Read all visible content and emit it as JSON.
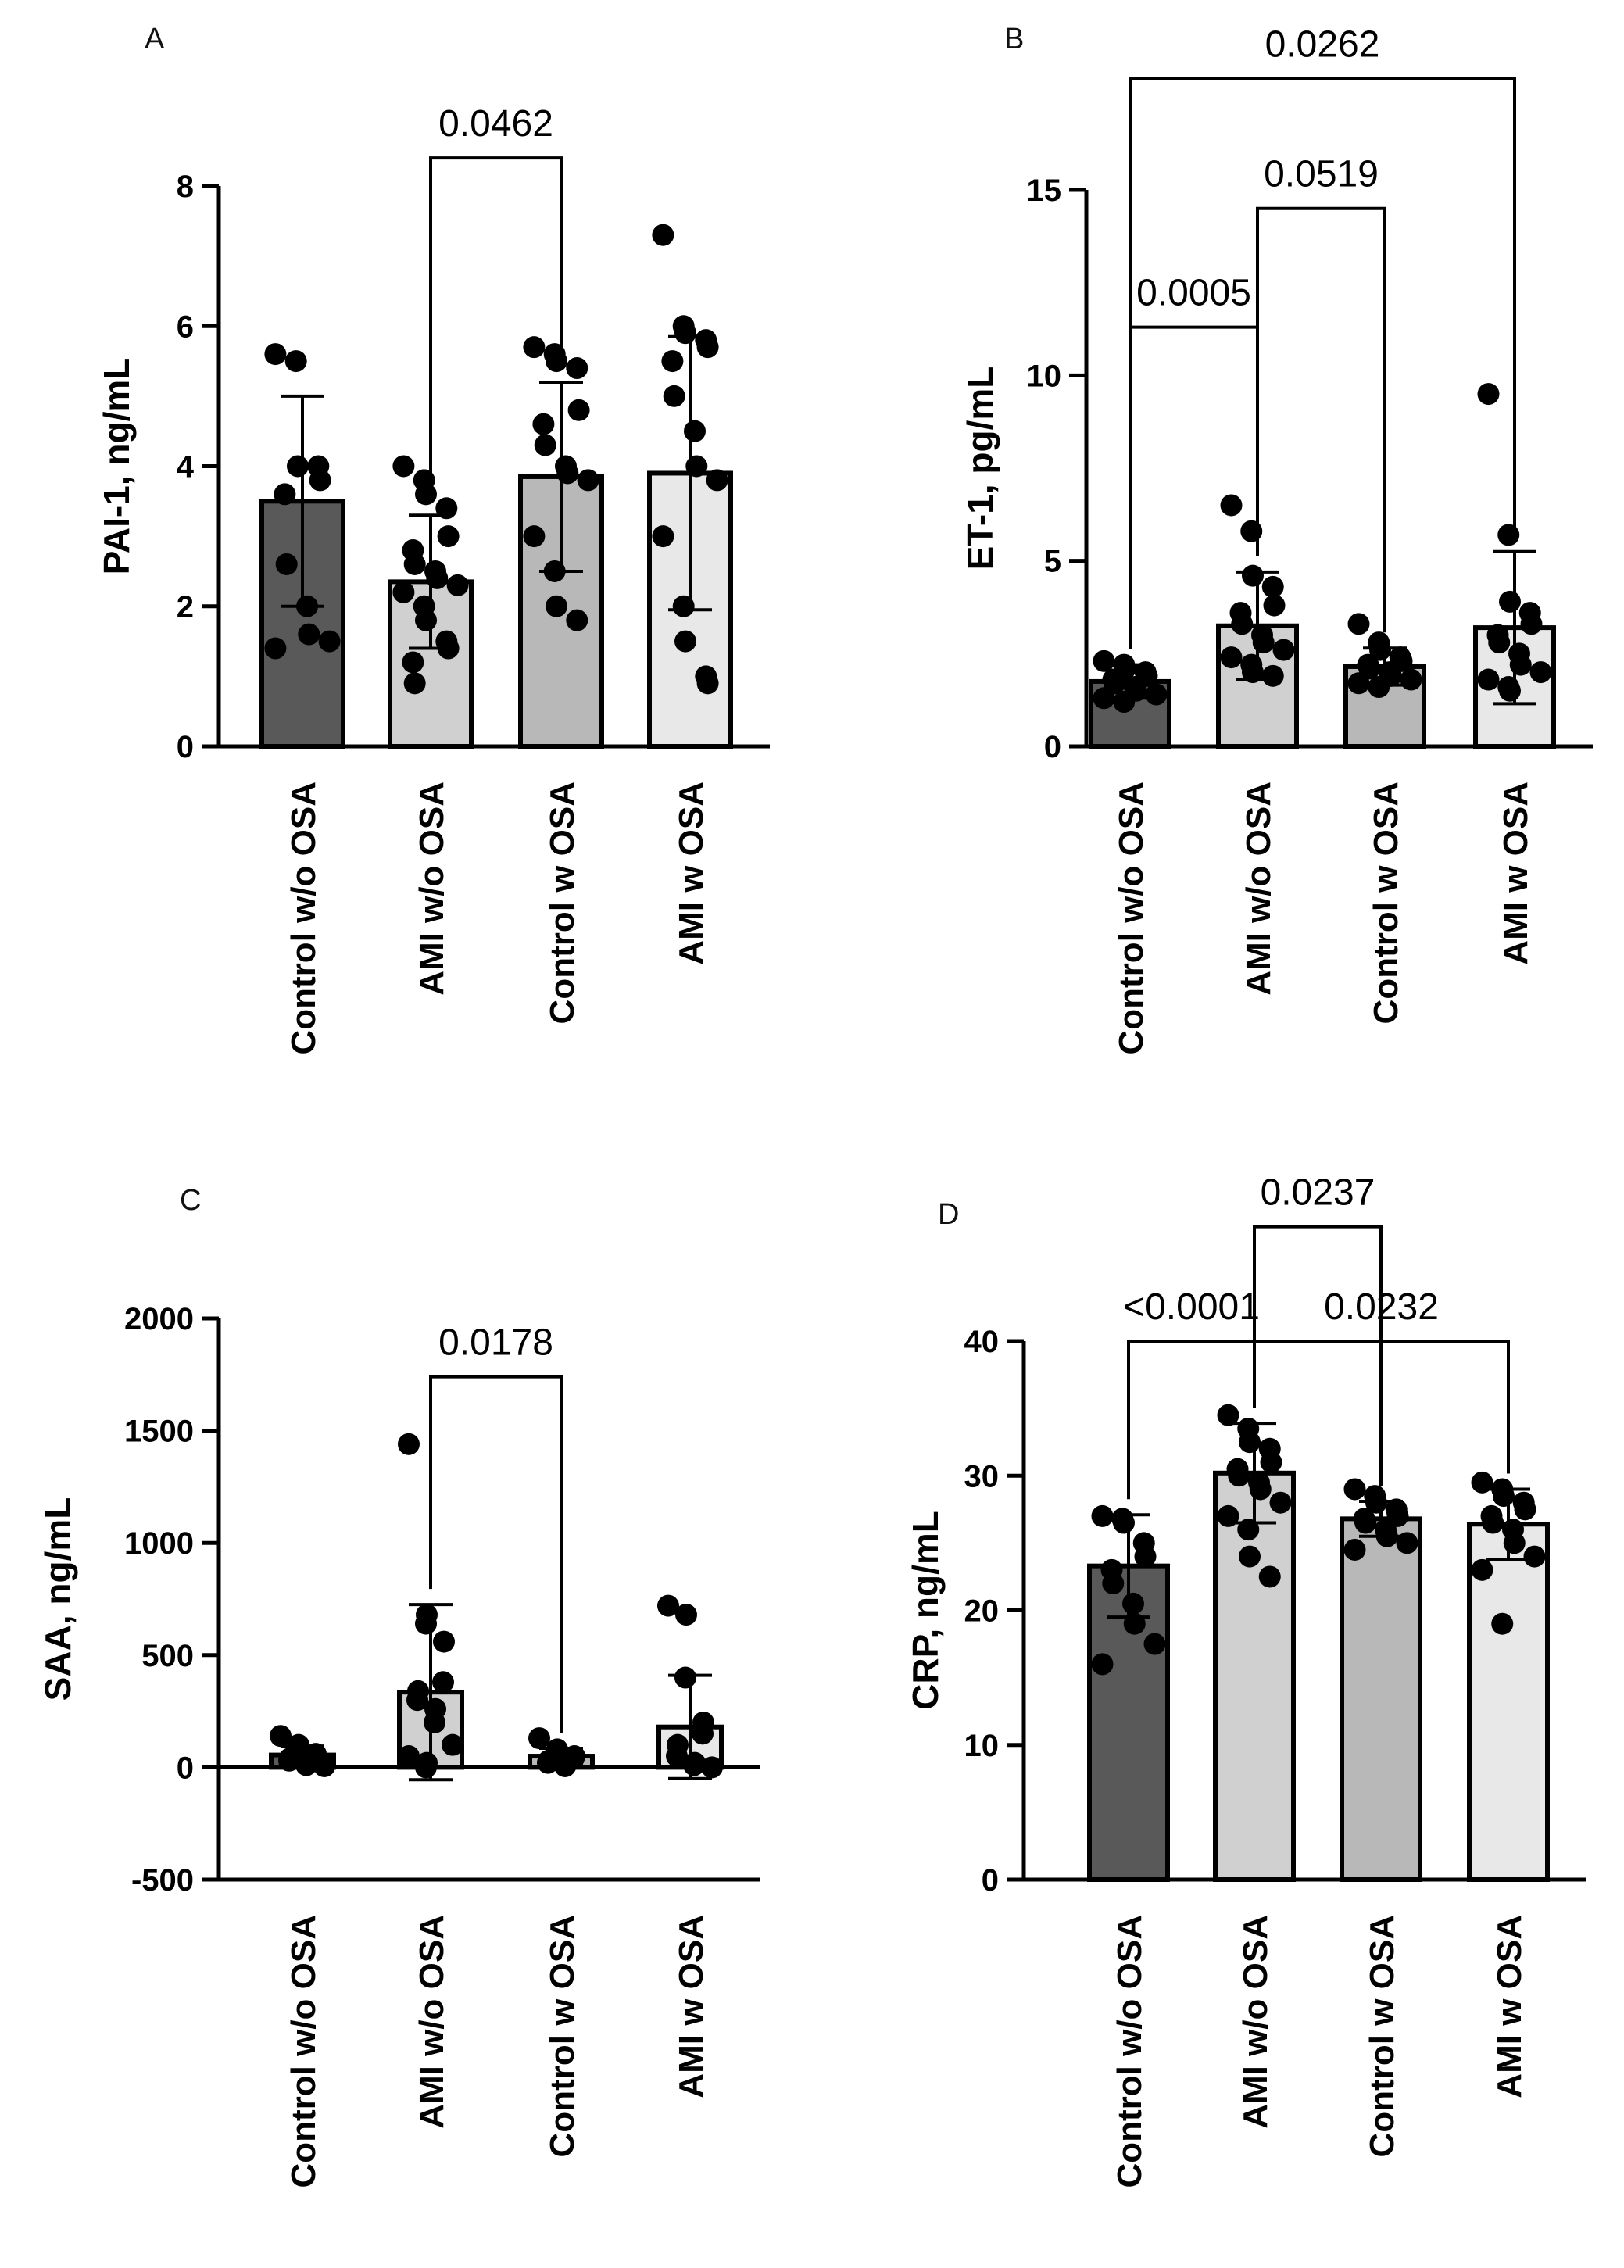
{
  "chart_data": [
    {
      "type": "bar",
      "panel": "A",
      "categories": [
        "Control w/o OSA",
        "AMI w/o OSA",
        "Control w OSA",
        "AMI w OSA"
      ],
      "values": [
        3.5,
        2.35,
        3.85,
        3.9
      ],
      "sd": [
        1.5,
        0.95,
        1.35,
        1.95
      ],
      "bar_colors": [
        "#595959",
        "#d0d0d0",
        "#b8b8b8",
        "#e8e8e8"
      ],
      "points": [
        [
          5.6,
          5.5,
          4.0,
          4.0,
          3.8,
          3.6,
          2.6,
          2.0,
          1.6,
          1.5,
          1.4
        ],
        [
          4.0,
          3.8,
          3.6,
          3.4,
          3.0,
          2.8,
          2.6,
          2.5,
          2.4,
          2.3,
          2.2,
          2.0,
          1.8,
          1.5,
          1.4,
          1.2,
          0.9
        ],
        [
          5.7,
          5.6,
          5.5,
          5.4,
          4.8,
          4.6,
          4.3,
          4.0,
          3.9,
          3.8,
          3.0,
          2.5,
          2.0,
          1.8
        ],
        [
          7.3,
          6.0,
          5.9,
          5.8,
          5.7,
          5.5,
          5.0,
          4.5,
          4.0,
          3.8,
          3.0,
          2.0,
          1.5,
          1.0,
          0.9
        ]
      ],
      "ylabel": "PAI-1, ng/mL",
      "ylim": [
        0,
        8
      ],
      "yticks": [
        0,
        2,
        4,
        6,
        8
      ],
      "comparisons": [
        {
          "from": 1,
          "to": 2,
          "label": "0.0462",
          "level": 8.4
        }
      ]
    },
    {
      "type": "bar",
      "panel": "B",
      "categories": [
        "Control w/o OSA",
        "AMI w/o OSA",
        "Control w OSA",
        "AMI w OSA"
      ],
      "values": [
        1.75,
        3.25,
        2.15,
        3.2
      ],
      "sd": [
        0.45,
        1.45,
        0.5,
        2.05
      ],
      "bar_colors": [
        "#595959",
        "#d0d0d0",
        "#b8b8b8",
        "#e8e8e8"
      ],
      "points": [
        [
          2.3,
          2.2,
          2.1,
          2.0,
          1.9,
          1.8,
          1.7,
          1.6,
          1.5,
          1.4,
          1.3,
          1.2
        ],
        [
          6.5,
          5.8,
          4.6,
          4.3,
          3.8,
          3.6,
          3.3,
          3.0,
          2.8,
          2.6,
          2.4,
          2.2,
          2.0,
          1.9
        ],
        [
          3.3,
          2.8,
          2.6,
          2.4,
          2.3,
          2.2,
          2.1,
          2.0,
          1.9,
          1.8,
          1.7,
          1.6
        ],
        [
          9.5,
          5.7,
          3.9,
          3.6,
          3.3,
          3.0,
          2.8,
          2.5,
          2.2,
          2.0,
          1.8,
          1.6,
          1.5
        ]
      ],
      "ylabel": "ET-1, pg/mL",
      "ylim": [
        0,
        15
      ],
      "yticks": [
        0,
        5,
        10,
        15
      ],
      "comparisons": [
        {
          "from": 0,
          "to": 1,
          "label": "0.0005",
          "level": 11.3
        },
        {
          "from": 1,
          "to": 2,
          "label": "0.0519",
          "level": 14.5
        },
        {
          "from": 0,
          "to": 3,
          "label": "0.0262",
          "level": 18.0
        }
      ]
    },
    {
      "type": "bar",
      "panel": "C",
      "categories": [
        "Control w/o OSA",
        "AMI w/o OSA",
        "Control w OSA",
        "AMI w OSA"
      ],
      "values": [
        55,
        335,
        50,
        180
      ],
      "sd": [
        40,
        390,
        35,
        230
      ],
      "bar_colors": [
        "#595959",
        "#d0d0d0",
        "#b8b8b8",
        "#e8e8e8"
      ],
      "points": [
        [
          140,
          100,
          80,
          60,
          50,
          40,
          30,
          20,
          10,
          5
        ],
        [
          1440,
          680,
          640,
          560,
          380,
          340,
          300,
          260,
          200,
          100,
          50,
          20,
          0
        ],
        [
          130,
          80,
          60,
          50,
          40,
          30,
          20,
          10,
          5
        ],
        [
          720,
          680,
          400,
          200,
          150,
          100,
          50,
          20,
          10,
          0
        ]
      ],
      "ylabel": "SAA,  ng/mL",
      "ylim": [
        -500,
        2000
      ],
      "yticks": [
        -500,
        0,
        500,
        1000,
        1500,
        2000
      ],
      "comparisons": [
        {
          "from": 1,
          "to": 2,
          "label": "0.0178",
          "level": 1740
        }
      ]
    },
    {
      "type": "bar",
      "panel": "D",
      "categories": [
        "Control w/o OSA",
        "AMI w/o OSA",
        "Control w OSA",
        "AMI w OSA"
      ],
      "values": [
        23.3,
        30.2,
        26.8,
        26.4
      ],
      "sd": [
        3.8,
        3.7,
        1.3,
        2.6
      ],
      "bar_colors": [
        "#595959",
        "#d0d0d0",
        "#b8b8b8",
        "#e8e8e8"
      ],
      "points": [
        [
          27.0,
          26.8,
          26.5,
          25.0,
          24.0,
          23.0,
          22.0,
          20.5,
          19.0,
          17.5,
          16.0
        ],
        [
          34.5,
          33.5,
          32.5,
          32.0,
          31.0,
          30.5,
          30.0,
          29.5,
          29.0,
          28.0,
          27.0,
          26.0,
          24.0,
          22.5
        ],
        [
          29.0,
          28.5,
          28.0,
          27.5,
          27.0,
          26.8,
          26.5,
          26.0,
          25.5,
          25.0,
          24.5
        ],
        [
          29.5,
          29.0,
          28.5,
          28.0,
          27.5,
          27.0,
          26.5,
          26.0,
          25.0,
          24.0,
          23.0,
          19.0
        ]
      ],
      "ylabel": "CRP, ng/mL",
      "ylim": [
        0,
        40
      ],
      "yticks": [
        0,
        10,
        20,
        30,
        40
      ],
      "comparisons": [
        {
          "from": 0,
          "to": 1,
          "label": "<0.0001",
          "level": 40.0
        },
        {
          "from": 1,
          "to": 3,
          "label": "0.0232",
          "level": 40.0
        },
        {
          "from": 1,
          "to": 2,
          "label": "0.0237",
          "level": 48.5
        }
      ]
    }
  ]
}
